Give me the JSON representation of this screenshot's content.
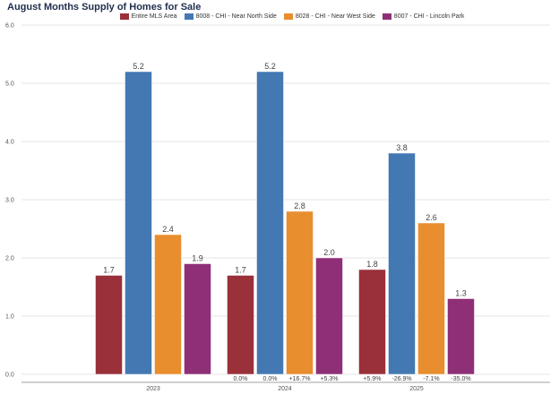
{
  "chart_data": {
    "type": "bar",
    "title": "August Months Supply of Homes for Sale",
    "xlabel": "",
    "ylabel": "",
    "ylim": [
      0,
      6
    ],
    "yticks": [
      "0.0",
      "1.0",
      "2.0",
      "3.0",
      "4.0",
      "5.0",
      "6.0"
    ],
    "grid": true,
    "legend_position": "top-center",
    "categories": [
      "2023",
      "2024",
      "2025"
    ],
    "series": [
      {
        "name": "Entire MLS Area",
        "color": "#99303a",
        "values": [
          1.7,
          1.7,
          1.8
        ],
        "labels": [
          "1.7",
          "1.7",
          "1.8"
        ],
        "changes": [
          "",
          "0.0%",
          "+5.9%"
        ]
      },
      {
        "name": "8008 - CHI - Near North Side",
        "color": "#4378b3",
        "values": [
          5.2,
          5.2,
          3.8
        ],
        "labels": [
          "5.2",
          "5.2",
          "3.8"
        ],
        "changes": [
          "",
          "0.0%",
          "-26.9%"
        ]
      },
      {
        "name": "8028 - CHI - Near West Side",
        "color": "#e88e2e",
        "values": [
          2.4,
          2.8,
          2.6
        ],
        "labels": [
          "2.4",
          "2.8",
          "2.6"
        ],
        "changes": [
          "",
          "+16.7%",
          "-7.1%"
        ]
      },
      {
        "name": "8007 - CHI - Lincoln Park",
        "color": "#8e2f77",
        "values": [
          1.9,
          2.0,
          1.3
        ],
        "labels": [
          "1.9",
          "2.0",
          "1.3"
        ],
        "changes": [
          "",
          "+5.3%",
          "-35.0%"
        ]
      }
    ]
  }
}
